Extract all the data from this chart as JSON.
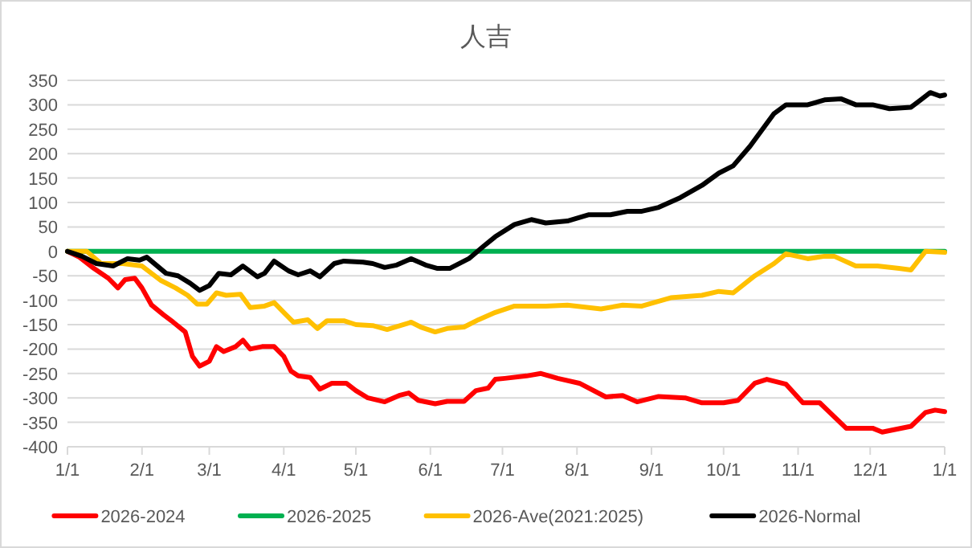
{
  "chart_data": {
    "type": "line",
    "title": "人吉",
    "xlim": [
      "2026-01-01",
      "2027-01-01"
    ],
    "xticks": [
      {
        "value": "2026-01-01",
        "label": "1/1"
      },
      {
        "value": "2026-02-01",
        "label": "2/1"
      },
      {
        "value": "2026-03-01",
        "label": "3/1"
      },
      {
        "value": "2026-04-01",
        "label": "4/1"
      },
      {
        "value": "2026-05-01",
        "label": "5/1"
      },
      {
        "value": "2026-06-01",
        "label": "6/1"
      },
      {
        "value": "2026-07-01",
        "label": "7/1"
      },
      {
        "value": "2026-08-01",
        "label": "8/1"
      },
      {
        "value": "2026-09-01",
        "label": "9/1"
      },
      {
        "value": "2026-10-01",
        "label": "10/1"
      },
      {
        "value": "2026-11-01",
        "label": "11/1"
      },
      {
        "value": "2026-12-01",
        "label": "12/1"
      },
      {
        "value": "2027-01-01",
        "label": "1/1"
      }
    ],
    "ylim": [
      -400,
      350
    ],
    "yticks": [
      -400,
      -350,
      -300,
      -250,
      -200,
      -150,
      -100,
      -50,
      0,
      50,
      100,
      150,
      200,
      250,
      300,
      350
    ],
    "grid": "y",
    "legend": "bottom",
    "marker": "none",
    "line_style": "solid",
    "series": [
      {
        "name": "2026-2024",
        "color": "#ff0000",
        "x": [
          "2026-01-01",
          "2026-01-06",
          "2026-01-12",
          "2026-01-18",
          "2026-01-22",
          "2026-01-25",
          "2026-01-29",
          "2026-02-01",
          "2026-02-05",
          "2026-02-10",
          "2026-02-14",
          "2026-02-19",
          "2026-02-22",
          "2026-02-25",
          "2026-03-01",
          "2026-03-04",
          "2026-03-07",
          "2026-03-12",
          "2026-03-15",
          "2026-03-18",
          "2026-03-23",
          "2026-03-28",
          "2026-04-01",
          "2026-04-04",
          "2026-04-07",
          "2026-04-12",
          "2026-04-16",
          "2026-04-21",
          "2026-04-27",
          "2026-05-01",
          "2026-05-06",
          "2026-05-13",
          "2026-05-19",
          "2026-05-23",
          "2026-05-27",
          "2026-06-03",
          "2026-06-08",
          "2026-06-15",
          "2026-06-20",
          "2026-06-25",
          "2026-06-28",
          "2026-07-02",
          "2026-07-11",
          "2026-07-17",
          "2026-07-24",
          "2026-08-02",
          "2026-08-13",
          "2026-08-20",
          "2026-08-26",
          "2026-09-04",
          "2026-09-15",
          "2026-09-22",
          "2026-10-01",
          "2026-10-07",
          "2026-10-14",
          "2026-10-19",
          "2026-10-27",
          "2026-11-03",
          "2026-11-10",
          "2026-11-21",
          "2026-12-02",
          "2026-12-06",
          "2026-12-18",
          "2026-12-24",
          "2026-12-28",
          "2027-01-01"
        ],
        "values": [
          0,
          -12,
          -35,
          -55,
          -75,
          -58,
          -55,
          -75,
          -110,
          -130,
          -145,
          -165,
          -215,
          -235,
          -225,
          -195,
          -205,
          -195,
          -182,
          -200,
          -195,
          -195,
          -215,
          -245,
          -255,
          -258,
          -282,
          -270,
          -270,
          -285,
          -300,
          -308,
          -295,
          -290,
          -305,
          -312,
          -307,
          -307,
          -285,
          -280,
          -262,
          -260,
          -255,
          -250,
          -260,
          -270,
          -298,
          -295,
          -308,
          -297,
          -300,
          -310,
          -310,
          -305,
          -270,
          -262,
          -272,
          -310,
          -310,
          -362,
          -362,
          -370,
          -358,
          -330,
          -325,
          -328
        ]
      },
      {
        "name": "2026-2025",
        "color": "#00b050",
        "x": [
          "2026-01-01",
          "2027-01-01"
        ],
        "values": [
          0,
          0
        ]
      },
      {
        "name": "2026-Ave(2021:2025)",
        "color": "#ffc000",
        "x": [
          "2026-01-01",
          "2026-01-09",
          "2026-01-15",
          "2026-01-24",
          "2026-02-01",
          "2026-02-09",
          "2026-02-15",
          "2026-02-20",
          "2026-02-24",
          "2026-02-28",
          "2026-03-04",
          "2026-03-08",
          "2026-03-14",
          "2026-03-18",
          "2026-03-24",
          "2026-03-28",
          "2026-04-01",
          "2026-04-05",
          "2026-04-11",
          "2026-04-15",
          "2026-04-19",
          "2026-04-26",
          "2026-05-01",
          "2026-05-08",
          "2026-05-14",
          "2026-05-24",
          "2026-05-28",
          "2026-06-03",
          "2026-06-08",
          "2026-06-15",
          "2026-06-21",
          "2026-06-28",
          "2026-07-06",
          "2026-07-19",
          "2026-07-28",
          "2026-08-11",
          "2026-08-20",
          "2026-08-28",
          "2026-09-09",
          "2026-09-22",
          "2026-09-29",
          "2026-10-05",
          "2026-10-14",
          "2026-10-22",
          "2026-10-27",
          "2026-11-05",
          "2026-11-12",
          "2026-11-16",
          "2026-11-25",
          "2026-12-04",
          "2026-12-13",
          "2026-12-18",
          "2026-12-24",
          "2027-01-01"
        ],
        "values": [
          0,
          0,
          -25,
          -25,
          -30,
          -60,
          -75,
          -90,
          -108,
          -108,
          -85,
          -90,
          -88,
          -115,
          -112,
          -105,
          -125,
          -145,
          -140,
          -158,
          -142,
          -142,
          -150,
          -152,
          -160,
          -145,
          -155,
          -165,
          -158,
          -155,
          -140,
          -125,
          -112,
          -112,
          -110,
          -118,
          -110,
          -112,
          -95,
          -90,
          -82,
          -85,
          -50,
          -25,
          -5,
          -15,
          -10,
          -10,
          -30,
          -30,
          -35,
          -38,
          0,
          -2
        ]
      },
      {
        "name": "2026-Normal",
        "color": "#000000",
        "x": [
          "2026-01-01",
          "2026-01-07",
          "2026-01-13",
          "2026-01-20",
          "2026-01-26",
          "2026-01-31",
          "2026-02-03",
          "2026-02-11",
          "2026-02-16",
          "2026-02-21",
          "2026-02-25",
          "2026-03-01",
          "2026-03-05",
          "2026-03-10",
          "2026-03-15",
          "2026-03-21",
          "2026-03-24",
          "2026-03-28",
          "2026-04-03",
          "2026-04-07",
          "2026-04-12",
          "2026-04-16",
          "2026-04-22",
          "2026-04-26",
          "2026-05-04",
          "2026-05-08",
          "2026-05-13",
          "2026-05-18",
          "2026-05-24",
          "2026-05-30",
          "2026-06-04",
          "2026-06-09",
          "2026-06-17",
          "2026-06-23",
          "2026-06-28",
          "2026-07-06",
          "2026-07-13",
          "2026-07-19",
          "2026-07-28",
          "2026-08-06",
          "2026-08-15",
          "2026-08-22",
          "2026-08-28",
          "2026-09-04",
          "2026-09-13",
          "2026-09-22",
          "2026-09-29",
          "2026-10-05",
          "2026-10-12",
          "2026-10-22",
          "2026-10-27",
          "2026-11-05",
          "2026-11-12",
          "2026-11-19",
          "2026-11-25",
          "2026-12-02",
          "2026-12-09",
          "2026-12-18",
          "2026-12-22",
          "2026-12-26",
          "2026-12-30",
          "2027-01-01"
        ],
        "values": [
          0,
          -10,
          -25,
          -30,
          -15,
          -18,
          -12,
          -45,
          -50,
          -65,
          -80,
          -70,
          -45,
          -48,
          -30,
          -52,
          -45,
          -20,
          -40,
          -48,
          -40,
          -52,
          -25,
          -20,
          -22,
          -25,
          -33,
          -28,
          -15,
          -28,
          -35,
          -35,
          -15,
          10,
          30,
          55,
          65,
          58,
          62,
          75,
          75,
          82,
          82,
          90,
          110,
          135,
          160,
          175,
          215,
          282,
          300,
          300,
          310,
          312,
          300,
          300,
          292,
          295,
          310,
          325,
          318,
          320
        ]
      }
    ]
  }
}
